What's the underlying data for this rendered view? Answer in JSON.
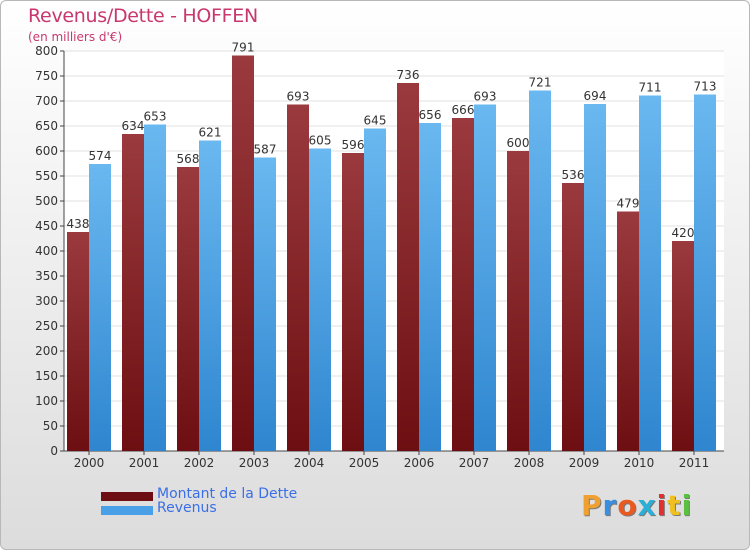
{
  "title": "Revenus/Dette - HOFFEN",
  "subtitle": "(en milliers d'€)",
  "brand": {
    "text": "Proxiti",
    "letter_colors": [
      "#f0a030",
      "#3a8ee0",
      "#e85a20",
      "#2ab0d8",
      "#e03030",
      "#f0c020",
      "#5ac040"
    ]
  },
  "colors": {
    "debt": "#6d0f12",
    "debt_light": "#9a3a3e",
    "revenue": "#4aa0e6",
    "revenue_light": "#6ab8f0",
    "label_text": "#3a6fe6",
    "title_text": "#c8386e"
  },
  "chart_data": {
    "type": "bar",
    "title": "Revenus/Dette - HOFFEN",
    "subtitle": "(en milliers d'€)",
    "xlabel": "",
    "ylabel": "",
    "ylim": [
      0,
      800
    ],
    "y_ticks": [
      0,
      50,
      100,
      150,
      200,
      250,
      300,
      350,
      400,
      450,
      500,
      550,
      600,
      650,
      700,
      750,
      800
    ],
    "grid": true,
    "legend_position": "bottom-left",
    "categories": [
      "2000",
      "2001",
      "2002",
      "2003",
      "2004",
      "2005",
      "2006",
      "2007",
      "2008",
      "2009",
      "2010",
      "2011"
    ],
    "series": [
      {
        "name": "Montant de la Dette",
        "values": [
          438,
          634,
          568,
          791,
          693,
          596,
          736,
          666,
          600,
          536,
          479,
          420
        ]
      },
      {
        "name": "Revenus",
        "values": [
          574,
          653,
          621,
          587,
          605,
          645,
          656,
          693,
          721,
          694,
          711,
          713
        ]
      }
    ]
  }
}
